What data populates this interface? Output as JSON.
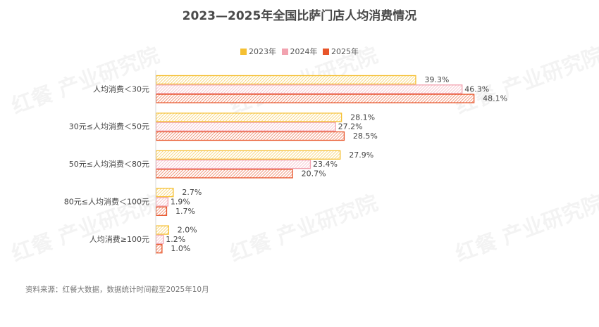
{
  "watermark": "红餐 产业研究院",
  "source": "资料来源：红餐大数据，数据统计时间截至2025年10月",
  "colors": {
    "2023": {
      "stroke": "#f5c033",
      "fill": "#fbe8a8"
    },
    "2024": {
      "stroke": "#f2a3b0",
      "fill": "#fbdde2"
    },
    "2025": {
      "stroke": "#e8552a",
      "fill": "#f4b49e"
    }
  },
  "chart_data": {
    "type": "bar",
    "orientation": "horizontal",
    "title": "2023—2025年全国比萨门店人均消费情况",
    "xlabel": "",
    "ylabel": "",
    "xlim": [
      0,
      50
    ],
    "grid": false,
    "legend_position": "top",
    "categories": [
      "人均消费＜30元",
      "30元≤人均消费＜50元",
      "50元≤人均消费＜80元",
      "80元≤人均消费＜100元",
      "人均消费≥100元"
    ],
    "series": [
      {
        "name": "2023年",
        "key": "2023",
        "values": [
          39.3,
          28.1,
          27.9,
          2.7,
          2.0
        ],
        "labels": [
          "39.3%",
          "28.1%",
          "27.9%",
          "2.7%",
          "2.0%"
        ]
      },
      {
        "name": "2024年",
        "key": "2024",
        "values": [
          46.3,
          27.2,
          23.4,
          1.9,
          1.2
        ],
        "labels": [
          "46.3%",
          "27.2%",
          "23.4%",
          "1.9%",
          "1.2%"
        ]
      },
      {
        "name": "2025年",
        "key": "2025",
        "values": [
          48.1,
          28.5,
          20.7,
          1.7,
          1.0
        ],
        "labels": [
          "48.1%",
          "28.5%",
          "20.7%",
          "1.7%",
          "1.0%"
        ]
      }
    ]
  }
}
